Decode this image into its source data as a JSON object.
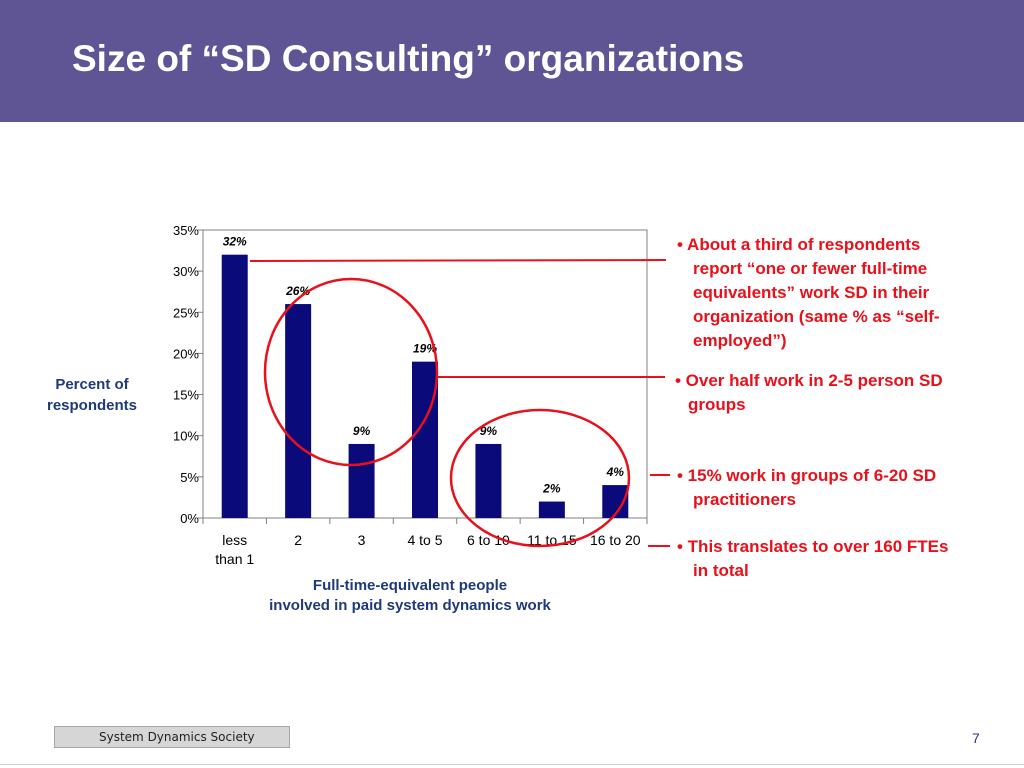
{
  "slide": {
    "title": "Size of “SD Consulting” organizations",
    "page_number": "7",
    "footer": "System Dynamics Society"
  },
  "chart_data": {
    "type": "bar",
    "categories": [
      [
        "less",
        "than 1"
      ],
      [
        "2"
      ],
      [
        "3"
      ],
      [
        "4 to 5"
      ],
      [
        "6 to 10"
      ],
      [
        "11 to 15"
      ],
      [
        "16 to 20"
      ]
    ],
    "values": [
      32,
      26,
      9,
      19,
      9,
      2,
      4
    ],
    "data_labels": [
      "32%",
      "26%",
      "9%",
      "19%",
      "9%",
      "2%",
      "4%"
    ],
    "ylabel": "Percent of respondents",
    "xlabel_lines": [
      "Full-time-equivalent people",
      "involved in paid system dynamics work"
    ],
    "ylim": [
      0,
      35
    ],
    "yticks": [
      0,
      5,
      10,
      15,
      20,
      25,
      30,
      35
    ],
    "ytick_labels": [
      "0%",
      "5%",
      "10%",
      "15%",
      "20%",
      "25%",
      "30%",
      "35%"
    ],
    "bar_color": "#0a0a7a",
    "annotation_color": "#e8101a",
    "grid": false,
    "legend": "none"
  },
  "annotations": [
    {
      "lines": [
        "• About a third of respondents",
        "report “one or fewer full-time",
        "equivalents” work SD in their",
        "organization (same % as “self-",
        "employed”)"
      ]
    },
    {
      "lines": [
        "• Over half work in 2-5 person SD",
        "groups"
      ]
    },
    {
      "lines": [
        "• 15% work in groups of 6-20 SD",
        "practitioners"
      ]
    },
    {
      "lines": [
        "• This translates to over 160 FTEs",
        "in total"
      ]
    }
  ],
  "colors": {
    "header_bg": "#5f5494",
    "title_text": "#ffffff",
    "label_text": "#1f3a78"
  }
}
